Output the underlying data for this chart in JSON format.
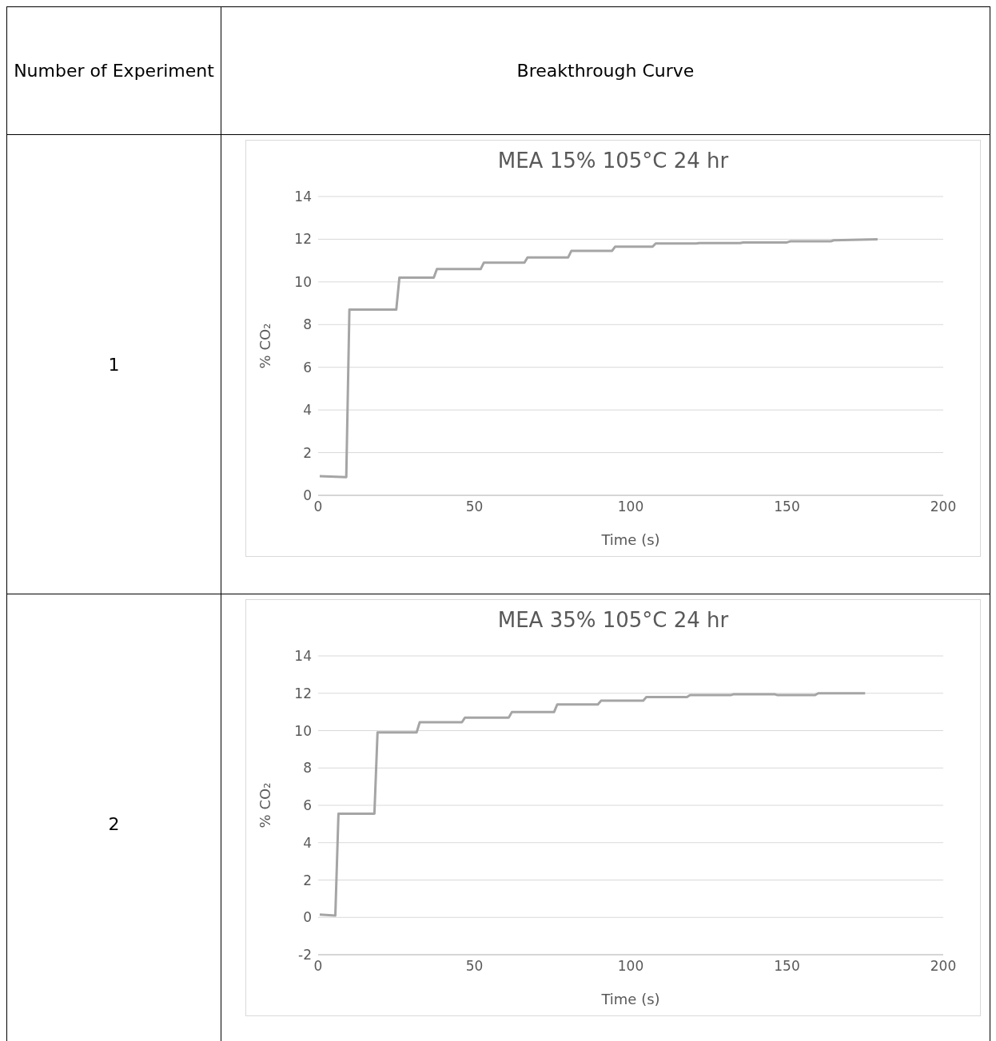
{
  "chart_data": [
    {
      "type": "line",
      "title": "MEA 15% 105°C 24 hr",
      "xlabel": "Time (s)",
      "ylabel": "% CO₂",
      "annotations": [
        "Number of Experiment",
        "Breakthrough Curve",
        "1"
      ],
      "xlim": [
        0,
        200
      ],
      "xticks": [
        0,
        50,
        100,
        150,
        200
      ],
      "ylim": [
        0,
        14
      ],
      "yticks": [
        0,
        2,
        4,
        6,
        8,
        10,
        12,
        14
      ],
      "grid": "y",
      "marker": "none",
      "series": [
        {
          "color": "#a5a5a5",
          "x": [
            0.5,
            9,
            10,
            25,
            26,
            37,
            38,
            52,
            53,
            66,
            67,
            80,
            81,
            94,
            95,
            107,
            108,
            121,
            122,
            135,
            136,
            150,
            151,
            164,
            165,
            179
          ],
          "values": [
            0.9,
            0.85,
            8.7,
            8.7,
            10.2,
            10.2,
            10.6,
            10.6,
            10.9,
            10.9,
            11.15,
            11.15,
            11.45,
            11.45,
            11.65,
            11.65,
            11.8,
            11.8,
            11.82,
            11.82,
            11.85,
            11.85,
            11.9,
            11.9,
            11.95,
            12.0
          ]
        }
      ]
    },
    {
      "type": "line",
      "title": "MEA 35% 105°C 24 hr",
      "xlabel": "Time (s)",
      "ylabel": "% CO₂",
      "annotations": [
        "2"
      ],
      "xlim": [
        0,
        200
      ],
      "xticks": [
        0,
        50,
        100,
        150,
        200
      ],
      "ylim": [
        -2,
        14
      ],
      "yticks": [
        -2,
        0,
        2,
        4,
        6,
        8,
        10,
        12,
        14
      ],
      "grid": "y",
      "marker": "none",
      "series": [
        {
          "color": "#a5a5a5",
          "x": [
            0.5,
            5.5,
            6.5,
            18,
            19,
            31.5,
            32.5,
            46,
            47,
            61,
            62,
            75.5,
            76.5,
            89.5,
            90.5,
            104,
            105,
            118,
            119,
            132,
            133,
            146,
            147,
            159,
            160,
            175
          ],
          "values": [
            0.15,
            0.1,
            5.55,
            5.55,
            9.9,
            9.9,
            10.45,
            10.45,
            10.7,
            10.7,
            11.0,
            11.0,
            11.4,
            11.4,
            11.6,
            11.6,
            11.8,
            11.8,
            11.9,
            11.9,
            11.95,
            11.95,
            11.9,
            11.9,
            12.0,
            12.0
          ]
        }
      ]
    }
  ]
}
